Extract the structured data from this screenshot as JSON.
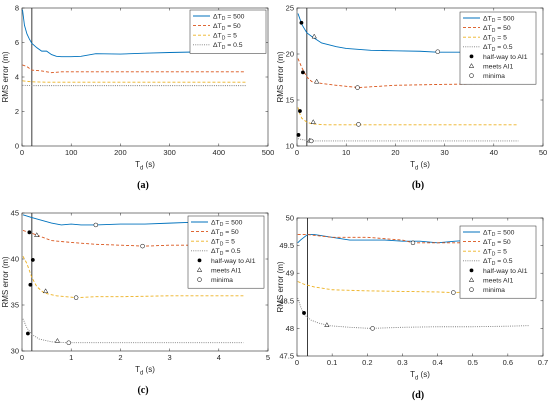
{
  "chart_data": [
    {
      "type": "line",
      "caption": "(a)",
      "xlabel_main": "T",
      "xlabel_sub": "d",
      "xlabel_unit": " (s)",
      "ylabel": "RMS error (m)",
      "xlim": [
        0,
        500
      ],
      "ylim": [
        0,
        8
      ],
      "xticks": [
        0,
        100,
        200,
        300,
        400,
        500
      ],
      "yticks": [
        0,
        2,
        4,
        6,
        8
      ],
      "vline_x": 20,
      "legend": [
        "ΔT_D = 500",
        "ΔT_D = 50",
        "ΔT_D = 5",
        "ΔT_D = 0.5"
      ],
      "series": [
        {
          "name": "ΔT_D = 500",
          "color": "#0072BD",
          "dash": "solid",
          "points": [
            [
              1,
              7.9
            ],
            [
              5,
              7.0
            ],
            [
              10,
              6.5
            ],
            [
              15,
              6.2
            ],
            [
              20,
              5.95
            ],
            [
              30,
              5.7
            ],
            [
              40,
              5.5
            ],
            [
              50,
              5.5
            ],
            [
              60,
              5.3
            ],
            [
              70,
              5.2
            ],
            [
              80,
              5.18
            ],
            [
              100,
              5.18
            ],
            [
              120,
              5.2
            ],
            [
              150,
              5.35
            ],
            [
              200,
              5.33
            ],
            [
              250,
              5.38
            ],
            [
              300,
              5.42
            ],
            [
              350,
              5.45
            ],
            [
              400,
              5.5
            ],
            [
              455,
              5.5
            ]
          ]
        },
        {
          "name": "ΔT_D = 50",
          "color": "#D95319",
          "dash": "dashed",
          "points": [
            [
              1,
              4.7
            ],
            [
              10,
              4.6
            ],
            [
              20,
              4.4
            ],
            [
              40,
              4.35
            ],
            [
              60,
              4.25
            ],
            [
              80,
              4.3
            ],
            [
              100,
              4.3
            ],
            [
              200,
              4.3
            ],
            [
              300,
              4.3
            ],
            [
              455,
              4.3
            ]
          ]
        },
        {
          "name": "ΔT_D = 5",
          "color": "#EDB120",
          "dash": "dashed",
          "points": [
            [
              1,
              3.78
            ],
            [
              10,
              3.75
            ],
            [
              20,
              3.72
            ],
            [
              50,
              3.7
            ],
            [
              100,
              3.7
            ],
            [
              200,
              3.7
            ],
            [
              300,
              3.7
            ],
            [
              455,
              3.7
            ]
          ]
        },
        {
          "name": "ΔT_D = 0.5",
          "color": "#7E7E7E",
          "dash": "dotted",
          "points": [
            [
              1,
              3.52
            ],
            [
              20,
              3.5
            ],
            [
              100,
              3.5
            ],
            [
              200,
              3.5
            ],
            [
              300,
              3.5
            ],
            [
              455,
              3.5
            ]
          ]
        }
      ]
    },
    {
      "type": "line",
      "caption": "(b)",
      "xlabel_main": "T",
      "xlabel_sub": "d",
      "xlabel_unit": " (s)",
      "ylabel": "RMS error (m)",
      "xlim": [
        0,
        50
      ],
      "ylim": [
        10,
        25
      ],
      "xticks": [
        0,
        10,
        20,
        30,
        40,
        50
      ],
      "yticks": [
        10,
        15,
        20,
        25
      ],
      "vline_x": 2,
      "legend": [
        "ΔT_D = 500",
        "ΔT_D = 50",
        "ΔT_D = 5",
        "ΔT_D = 0.5",
        "half-way to AI1",
        "meets AI1",
        "minima"
      ],
      "series": [
        {
          "name": "ΔT_D = 500",
          "color": "#0072BD",
          "dash": "solid",
          "points": [
            [
              0.2,
              24.4
            ],
            [
              1,
              23.2
            ],
            [
              2,
              22.3
            ],
            [
              3,
              21.9
            ],
            [
              5,
              21.2
            ],
            [
              8,
              20.8
            ],
            [
              10,
              20.6
            ],
            [
              15,
              20.4
            ],
            [
              20,
              20.35
            ],
            [
              25,
              20.3
            ],
            [
              28.5,
              20.2
            ],
            [
              35,
              20.2
            ],
            [
              45,
              20.2
            ]
          ]
        },
        {
          "name": "ΔT_D = 50",
          "color": "#D95319",
          "dash": "dashed",
          "points": [
            [
              0.2,
              19.5
            ],
            [
              1,
              18.5
            ],
            [
              2,
              17.5
            ],
            [
              3,
              17.0
            ],
            [
              5,
              16.8
            ],
            [
              8,
              16.6
            ],
            [
              12.5,
              16.35
            ],
            [
              20,
              16.6
            ],
            [
              30,
              16.7
            ],
            [
              45,
              16.8
            ]
          ]
        },
        {
          "name": "ΔT_D = 5",
          "color": "#EDB120",
          "dash": "dashed",
          "points": [
            [
              0.2,
              14.2
            ],
            [
              0.5,
              13.6
            ],
            [
              1,
              13.0
            ],
            [
              2,
              12.6
            ],
            [
              3,
              12.4
            ],
            [
              6,
              12.3
            ],
            [
              12,
              12.3
            ],
            [
              20,
              12.3
            ],
            [
              30,
              12.3
            ],
            [
              45,
              12.3
            ]
          ]
        },
        {
          "name": "ΔT_D = 0.5",
          "color": "#7E7E7E",
          "dash": "dotted",
          "points": [
            [
              0.2,
              10.8
            ],
            [
              1,
              10.7
            ],
            [
              2,
              10.6
            ],
            [
              3,
              10.55
            ],
            [
              10,
              10.55
            ],
            [
              20,
              10.55
            ],
            [
              30,
              10.55
            ],
            [
              45,
              10.55
            ]
          ]
        }
      ],
      "markers": [
        {
          "type": "half-way",
          "points": [
            [
              0.3,
              11.2
            ],
            [
              0.6,
              13.8
            ],
            [
              0.9,
              23.4
            ],
            [
              1.2,
              18.0
            ]
          ]
        },
        {
          "type": "meets",
          "points": [
            [
              2.6,
              10.6
            ],
            [
              3.3,
              12.6
            ],
            [
              3.5,
              21.9
            ],
            [
              4.0,
              17.0
            ]
          ]
        },
        {
          "type": "minima",
          "points": [
            [
              2.9,
              10.55
            ],
            [
              12.5,
              12.35
            ],
            [
              12.3,
              16.35
            ],
            [
              28.6,
              20.25
            ]
          ]
        }
      ]
    },
    {
      "type": "line",
      "caption": "(c)",
      "xlabel_main": "T",
      "xlabel_sub": "d",
      "xlabel_unit": " (s)",
      "ylabel": "RMS error (m)",
      "xlim": [
        0,
        5
      ],
      "ylim": [
        30,
        45
      ],
      "xticks": [
        0,
        1,
        2,
        3,
        4,
        5
      ],
      "yticks": [
        30,
        35,
        40,
        45
      ],
      "vline_x": 0.2,
      "legend": [
        "ΔT_D = 500",
        "ΔT_D = 50",
        "ΔT_D = 5",
        "ΔT_D = 0.5",
        "half-way to AI1",
        "meets AI1",
        "minima"
      ],
      "series": [
        {
          "name": "ΔT_D = 500",
          "color": "#0072BD",
          "dash": "solid",
          "points": [
            [
              0.02,
              44.8
            ],
            [
              0.2,
              44.5
            ],
            [
              0.4,
              44.2
            ],
            [
              0.6,
              43.9
            ],
            [
              0.8,
              43.7
            ],
            [
              1.0,
              43.8
            ],
            [
              1.2,
              43.7
            ],
            [
              1.5,
              43.7
            ],
            [
              2.0,
              43.8
            ],
            [
              2.5,
              43.8
            ],
            [
              3.0,
              43.9
            ],
            [
              3.5,
              44.0
            ],
            [
              4.0,
              44.0
            ],
            [
              4.5,
              44.1
            ]
          ]
        },
        {
          "name": "ΔT_D = 50",
          "color": "#D95319",
          "dash": "dashed",
          "points": [
            [
              0.02,
              43.1
            ],
            [
              0.2,
              42.8
            ],
            [
              0.35,
              42.5
            ],
            [
              0.6,
              42.0
            ],
            [
              1.0,
              41.8
            ],
            [
              1.5,
              41.6
            ],
            [
              2.0,
              41.5
            ],
            [
              2.5,
              41.4
            ],
            [
              3.0,
              41.5
            ],
            [
              3.5,
              41.5
            ],
            [
              4.0,
              41.4
            ],
            [
              4.5,
              41.5
            ]
          ]
        },
        {
          "name": "ΔT_D = 5",
          "color": "#EDB120",
          "dash": "dashed",
          "points": [
            [
              0.02,
              40.3
            ],
            [
              0.1,
              39.5
            ],
            [
              0.2,
              38.0
            ],
            [
              0.3,
              37.0
            ],
            [
              0.45,
              36.3
            ],
            [
              0.7,
              36.0
            ],
            [
              1.1,
              35.8
            ],
            [
              1.5,
              35.9
            ],
            [
              2.0,
              35.9
            ],
            [
              3.0,
              36.0
            ],
            [
              4.0,
              36.0
            ],
            [
              4.5,
              36.0
            ]
          ]
        },
        {
          "name": "ΔT_D = 0.5",
          "color": "#7E7E7E",
          "dash": "dotted",
          "points": [
            [
              0.02,
              33.5
            ],
            [
              0.1,
              32.5
            ],
            [
              0.2,
              31.8
            ],
            [
              0.35,
              31.3
            ],
            [
              0.6,
              31.0
            ],
            [
              0.9,
              30.9
            ],
            [
              1.5,
              30.9
            ],
            [
              2.5,
              30.9
            ],
            [
              3.5,
              30.9
            ],
            [
              4.5,
              30.9
            ]
          ]
        }
      ],
      "markers": [
        {
          "type": "half-way",
          "points": [
            [
              0.12,
              31.9
            ],
            [
              0.17,
              37.2
            ],
            [
              0.15,
              42.9
            ],
            [
              0.22,
              39.9
            ]
          ]
        },
        {
          "type": "meets",
          "points": [
            [
              0.3,
              42.6
            ],
            [
              0.48,
              36.5
            ],
            [
              0.72,
              31.1
            ]
          ]
        },
        {
          "type": "minima",
          "points": [
            [
              0.95,
              30.9
            ],
            [
              1.1,
              35.8
            ],
            [
              1.5,
              43.7
            ],
            [
              2.45,
              41.4
            ]
          ]
        }
      ]
    },
    {
      "type": "line",
      "caption": "(d)",
      "xlabel_main": "T",
      "xlabel_sub": "d",
      "xlabel_unit": " (s)",
      "ylabel": "RMS error (m)",
      "xlim": [
        0,
        0.7
      ],
      "ylim": [
        47.5,
        50
      ],
      "xticks": [
        0,
        0.1,
        0.2,
        0.3,
        0.4,
        0.5,
        0.6,
        0.7
      ],
      "yticks": [
        47.5,
        48,
        48.5,
        49,
        49.5,
        50
      ],
      "vline_x": 0.03,
      "legend": [
        "ΔT_D = 500",
        "ΔT_D = 50",
        "ΔT_D = 5",
        "ΔT_D = 0.5",
        "half-way to AI1",
        "meets AI1",
        "minima"
      ],
      "series": [
        {
          "name": "ΔT_D = 500",
          "color": "#0072BD",
          "dash": "solid",
          "points": [
            [
              0.002,
              49.55
            ],
            [
              0.01,
              49.6
            ],
            [
              0.03,
              49.7
            ],
            [
              0.05,
              49.7
            ],
            [
              0.1,
              49.65
            ],
            [
              0.15,
              49.6
            ],
            [
              0.2,
              49.6
            ],
            [
              0.25,
              49.6
            ],
            [
              0.3,
              49.58
            ],
            [
              0.35,
              49.58
            ],
            [
              0.4,
              49.55
            ],
            [
              0.45,
              49.58
            ],
            [
              0.5,
              49.6
            ],
            [
              0.55,
              49.6
            ],
            [
              0.6,
              49.58
            ],
            [
              0.65,
              49.6
            ]
          ]
        },
        {
          "name": "ΔT_D = 50",
          "color": "#D95319",
          "dash": "dashed",
          "points": [
            [
              0.002,
              49.7
            ],
            [
              0.03,
              49.7
            ],
            [
              0.1,
              49.65
            ],
            [
              0.2,
              49.65
            ],
            [
              0.3,
              49.6
            ],
            [
              0.33,
              49.55
            ],
            [
              0.4,
              49.55
            ],
            [
              0.47,
              49.55
            ],
            [
              0.55,
              49.58
            ],
            [
              0.65,
              49.6
            ]
          ]
        },
        {
          "name": "ΔT_D = 5",
          "color": "#EDB120",
          "dash": "dashed",
          "points": [
            [
              0.002,
              48.85
            ],
            [
              0.02,
              48.8
            ],
            [
              0.05,
              48.75
            ],
            [
              0.1,
              48.7
            ],
            [
              0.2,
              48.68
            ],
            [
              0.3,
              48.67
            ],
            [
              0.4,
              48.66
            ],
            [
              0.44,
              48.65
            ],
            [
              0.5,
              48.66
            ],
            [
              0.55,
              48.67
            ]
          ]
        },
        {
          "name": "ΔT_D = 0.5",
          "color": "#7E7E7E",
          "dash": "dotted",
          "points": [
            [
              0.002,
              48.55
            ],
            [
              0.01,
              48.4
            ],
            [
              0.02,
              48.25
            ],
            [
              0.04,
              48.15
            ],
            [
              0.06,
              48.1
            ],
            [
              0.09,
              48.05
            ],
            [
              0.15,
              48.02
            ],
            [
              0.21,
              48.0
            ],
            [
              0.3,
              48.02
            ],
            [
              0.4,
              48.03
            ],
            [
              0.5,
              48.03
            ],
            [
              0.6,
              48.04
            ],
            [
              0.66,
              48.05
            ]
          ]
        }
      ],
      "markers": [
        {
          "type": "half-way",
          "points": [
            [
              0.02,
              48.28
            ]
          ]
        },
        {
          "type": "meets",
          "points": [
            [
              0.085,
              48.06
            ]
          ]
        },
        {
          "type": "minima",
          "points": [
            [
              0.215,
              48.0
            ],
            [
              0.33,
              49.55
            ],
            [
              0.445,
              48.65
            ],
            [
              0.47,
              49.55
            ]
          ]
        }
      ]
    }
  ]
}
